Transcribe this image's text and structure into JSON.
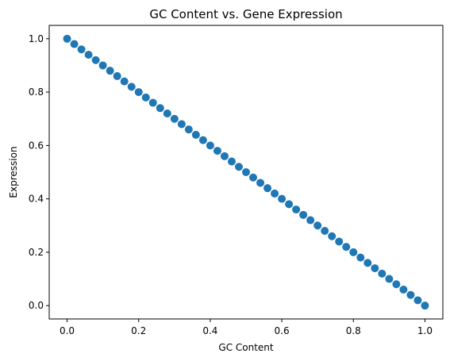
{
  "chart_data": {
    "type": "scatter",
    "title": "GC Content vs. Gene Expression",
    "xlabel": "GC Content",
    "ylabel": "Expression",
    "xlim": [
      -0.05,
      1.05
    ],
    "ylim": [
      -0.05,
      1.05
    ],
    "x_ticks": [
      0.0,
      0.2,
      0.4,
      0.6,
      0.8,
      1.0
    ],
    "x_tick_labels": [
      "0.0",
      "0.2",
      "0.4",
      "0.6",
      "0.8",
      "1.0"
    ],
    "y_ticks": [
      0.0,
      0.2,
      0.4,
      0.6,
      0.8,
      1.0
    ],
    "y_tick_labels": [
      "0.0",
      "0.2",
      "0.4",
      "0.6",
      "0.8",
      "1.0"
    ],
    "grid": false,
    "marker_color": "#1f77b4",
    "series": [
      {
        "x": [
          0.0,
          0.02,
          0.04,
          0.06,
          0.08,
          0.1,
          0.12,
          0.14,
          0.16,
          0.18,
          0.2,
          0.22,
          0.24,
          0.26,
          0.28,
          0.3,
          0.32,
          0.34,
          0.36,
          0.38,
          0.4,
          0.42,
          0.44,
          0.46,
          0.48,
          0.5,
          0.52,
          0.54,
          0.56,
          0.58,
          0.6,
          0.62,
          0.64,
          0.66,
          0.68,
          0.7,
          0.72,
          0.74,
          0.76,
          0.78,
          0.8,
          0.82,
          0.84,
          0.86,
          0.88,
          0.9,
          0.92,
          0.94,
          0.96,
          0.98,
          1.0
        ],
        "y": [
          1.0,
          0.98,
          0.96,
          0.94,
          0.92,
          0.9,
          0.88,
          0.86,
          0.84,
          0.82,
          0.8,
          0.78,
          0.76,
          0.74,
          0.72,
          0.7,
          0.68,
          0.66,
          0.64,
          0.62,
          0.6,
          0.58,
          0.56,
          0.54,
          0.52,
          0.5,
          0.48,
          0.46,
          0.44,
          0.42,
          0.4,
          0.38,
          0.36,
          0.34,
          0.32,
          0.3,
          0.28,
          0.26,
          0.24,
          0.22,
          0.2,
          0.18,
          0.16,
          0.14,
          0.12,
          0.1,
          0.08,
          0.06,
          0.04,
          0.02,
          0.0
        ]
      }
    ]
  }
}
